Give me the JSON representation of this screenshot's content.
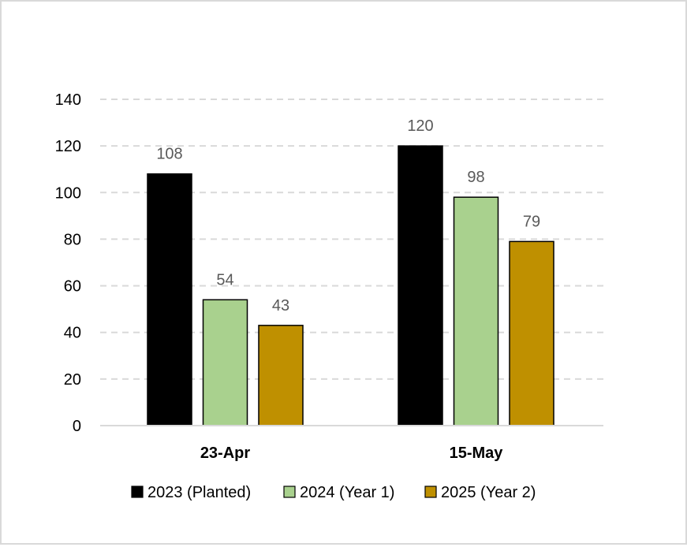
{
  "chart_data": {
    "type": "bar",
    "categories": [
      "23-Apr",
      "15-May"
    ],
    "series": [
      {
        "name": "2023 (Planted)",
        "color": "#000000",
        "values": [
          108,
          120
        ]
      },
      {
        "name": "2024 (Year 1)",
        "color": "#a9d18e",
        "values": [
          54,
          98
        ]
      },
      {
        "name": "2025 (Year 2)",
        "color": "#bf9000",
        "values": [
          43,
          79
        ]
      }
    ],
    "ylim": [
      0,
      140
    ],
    "yticks": [
      0,
      20,
      40,
      60,
      80,
      100,
      120,
      140
    ],
    "grid": true,
    "legend_position": "bottom",
    "data_labels": true
  }
}
